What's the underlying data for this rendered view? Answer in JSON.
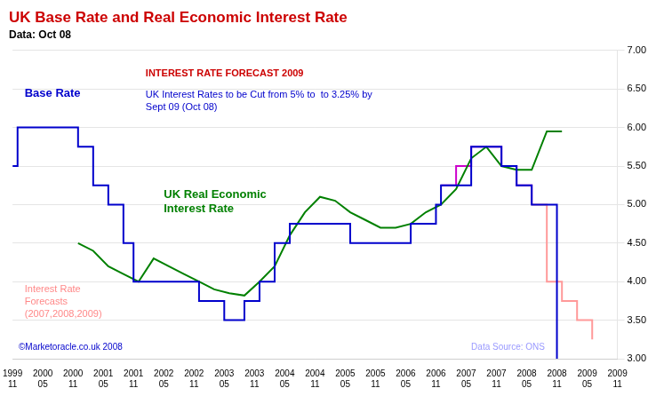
{
  "chart_data": {
    "type": "line",
    "title": "UK Base Rate and Real Economic Interest Rate",
    "title_color": "#cc0000",
    "subtitle": "Data: Oct 08",
    "subtitle_color": "#000000",
    "xlim": [
      1999.917,
      2009.917
    ],
    "xticks": [
      {
        "value": 1999.917,
        "label": "1999\n11"
      },
      {
        "value": 2000.417,
        "label": "2000\n05"
      },
      {
        "value": 2000.917,
        "label": "2000\n11"
      },
      {
        "value": 2001.417,
        "label": "2001\n05"
      },
      {
        "value": 2001.917,
        "label": "2001\n11"
      },
      {
        "value": 2002.417,
        "label": "2002\n05"
      },
      {
        "value": 2002.917,
        "label": "2002\n11"
      },
      {
        "value": 2003.417,
        "label": "2003\n05"
      },
      {
        "value": 2003.917,
        "label": "2003\n11"
      },
      {
        "value": 2004.417,
        "label": "2004\n05"
      },
      {
        "value": 2004.917,
        "label": "2004\n11"
      },
      {
        "value": 2005.417,
        "label": "2005\n05"
      },
      {
        "value": 2005.917,
        "label": "2005\n11"
      },
      {
        "value": 2006.417,
        "label": "2006\n05"
      },
      {
        "value": 2006.917,
        "label": "2006\n11"
      },
      {
        "value": 2007.417,
        "label": "2007\n05"
      },
      {
        "value": 2007.917,
        "label": "2007\n11"
      },
      {
        "value": 2008.417,
        "label": "2008\n05"
      },
      {
        "value": 2008.917,
        "label": "2008\n11"
      },
      {
        "value": 2009.417,
        "label": "2009\n05"
      },
      {
        "value": 2009.917,
        "label": "2009\n11"
      }
    ],
    "ylim": [
      3.0,
      7.0
    ],
    "yticks": [
      {
        "value": 3.0,
        "label": "3.00"
      },
      {
        "value": 3.5,
        "label": "3.50"
      },
      {
        "value": 4.0,
        "label": "4.00"
      },
      {
        "value": 4.5,
        "label": "4.50"
      },
      {
        "value": 5.0,
        "label": "5.00"
      },
      {
        "value": 5.5,
        "label": "5.50"
      },
      {
        "value": 6.0,
        "label": "6.00"
      },
      {
        "value": 6.5,
        "label": "6.50"
      },
      {
        "value": 7.0,
        "label": "7.00"
      }
    ],
    "grid": "y",
    "series": [
      {
        "color": "#0000cc",
        "line_style": "step",
        "x": [
          1999.917,
          2000.0,
          2000.917,
          2001.0,
          2001.25,
          2001.5,
          2001.75,
          2001.917,
          2002.0,
          2003.0,
          2003.417,
          2003.75,
          2004.0,
          2004.25,
          2004.5,
          2004.917,
          2005.0,
          2005.5,
          2006.0,
          2006.5,
          2006.917,
          2007.0,
          2007.5,
          2007.75,
          2008.0,
          2008.25,
          2008.5,
          2008.917
        ],
        "values": [
          5.5,
          6.0,
          6.0,
          5.75,
          5.25,
          5.0,
          4.5,
          4.0,
          4.0,
          3.75,
          3.5,
          3.75,
          4.0,
          4.5,
          4.75,
          4.75,
          4.75,
          4.5,
          4.5,
          4.75,
          5.0,
          5.25,
          5.75,
          5.75,
          5.5,
          5.25,
          5.0,
          3.0
        ]
      },
      {
        "color": "#008000",
        "line_style": "solid",
        "x": [
          2001.0,
          2001.25,
          2001.5,
          2001.75,
          2002.0,
          2002.25,
          2002.5,
          2002.75,
          2003.0,
          2003.25,
          2003.5,
          2003.75,
          2004.0,
          2004.25,
          2004.5,
          2004.75,
          2005.0,
          2005.25,
          2005.5,
          2005.75,
          2006.0,
          2006.25,
          2006.5,
          2006.75,
          2007.0,
          2007.25,
          2007.5,
          2007.75,
          2008.0,
          2008.25,
          2008.5,
          2008.75,
          2009.0
        ],
        "values": [
          4.5,
          4.4,
          4.2,
          4.1,
          4.0,
          4.3,
          4.2,
          4.1,
          4.0,
          3.9,
          3.85,
          3.82,
          4.0,
          4.2,
          4.6,
          4.9,
          5.1,
          5.05,
          4.9,
          4.8,
          4.7,
          4.7,
          4.75,
          4.9,
          5.0,
          5.2,
          5.6,
          5.75,
          5.5,
          5.45,
          5.45,
          5.95,
          5.95
        ]
      },
      {
        "color": "#cc00cc",
        "line_style": "step",
        "x": [
          2007.0,
          2007.25,
          2007.5,
          2007.75,
          2008.0,
          2008.25,
          2008.5
        ],
        "values": [
          5.25,
          5.5,
          5.75,
          5.75,
          5.5,
          5.25,
          5.0
        ]
      },
      {
        "color": "#ff9999",
        "line_style": "step",
        "x": [
          2008.5,
          2008.75,
          2009.0,
          2009.25,
          2009.5
        ],
        "values": [
          5.0,
          4.0,
          3.75,
          3.5,
          3.25
        ]
      }
    ],
    "annotations": [
      {
        "text": "INTEREST RATE FORECAST 2009",
        "color": "#cc0000"
      },
      {
        "text": "UK Interest Rates to be Cut from 5% to  to 3.25% by\nSept 09 (Oct 08)",
        "color": "#0000cc"
      },
      {
        "text": "Base Rate",
        "color": "#0000cc"
      },
      {
        "text": "Interest Rate\nForecasts\n(2007,2008,2009)",
        "color": "#ff8888"
      },
      {
        "text": "UK Real Economic\nInterest Rate",
        "color": "#008000"
      },
      {
        "text": "©Marketoracle.co.uk 2008",
        "color": "#0000cc"
      },
      {
        "text": "Data Source: ONS",
        "color": "#9999ff"
      }
    ]
  }
}
